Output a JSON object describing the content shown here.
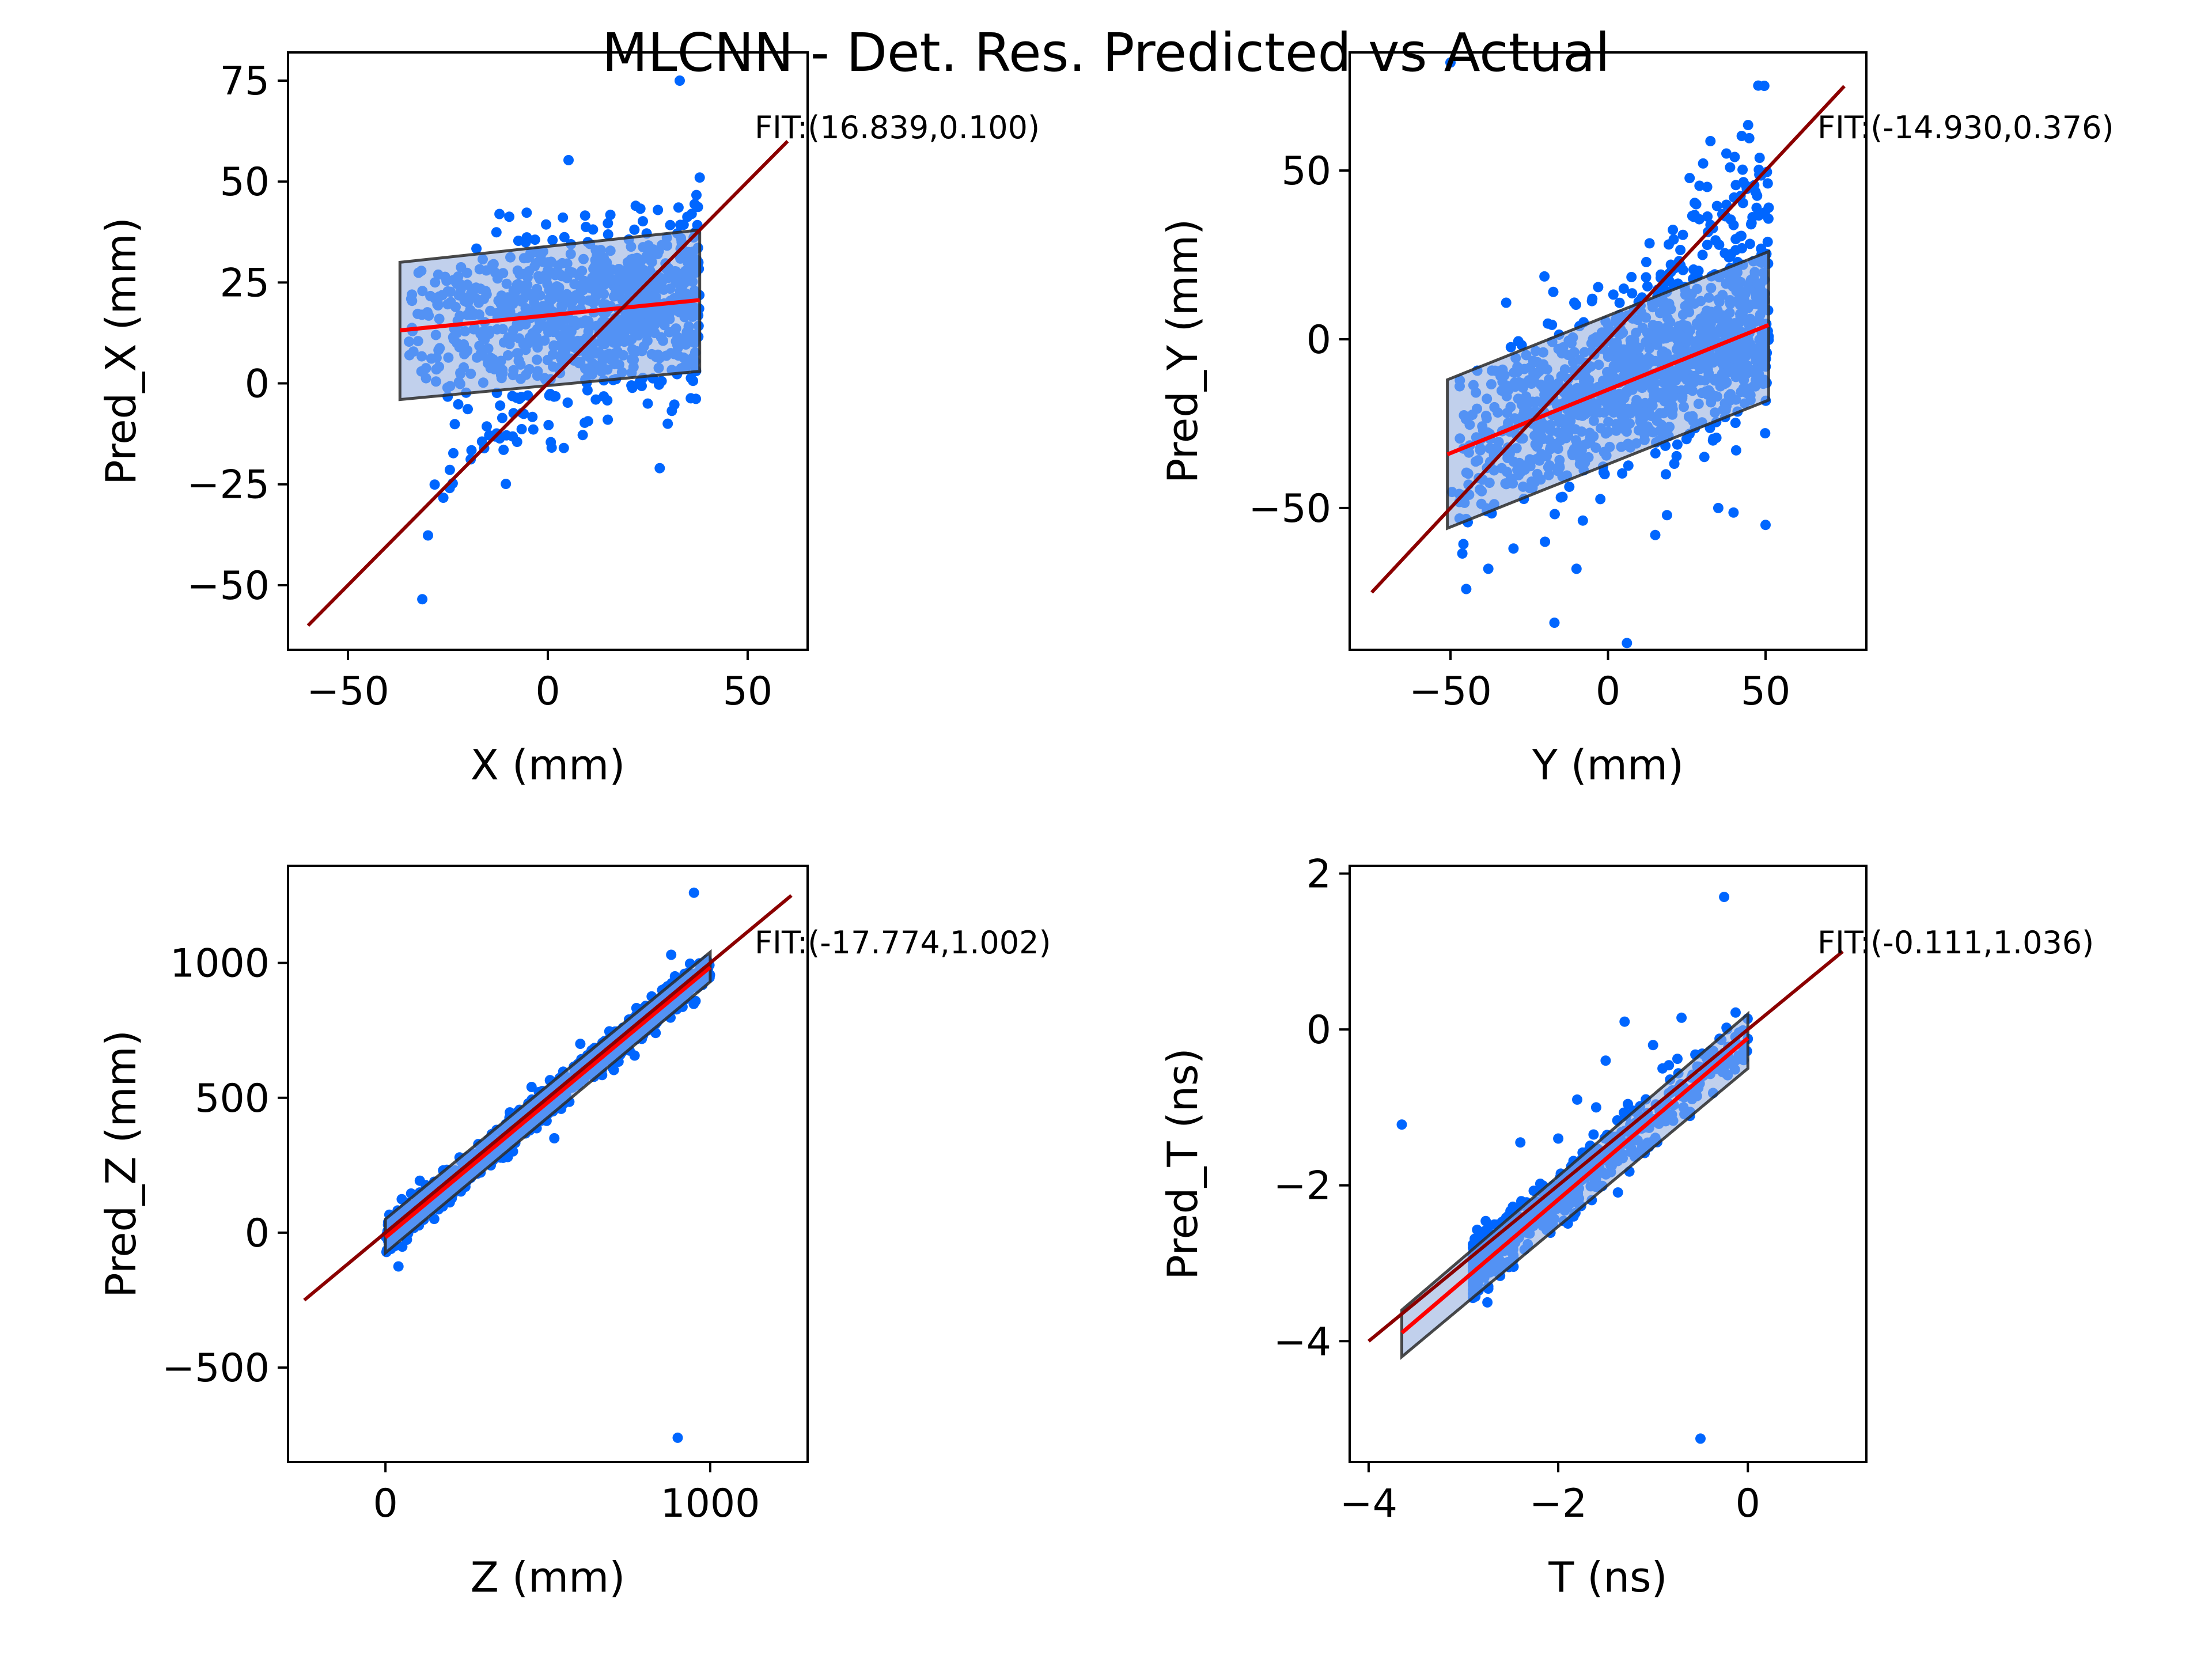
{
  "figure": {
    "title": "MLCNN - Det. Res. Predicted vs Actual"
  },
  "colors": {
    "points": "#0066ff",
    "band_fill": "#4a7fd0",
    "band_edge": "#2a2a2a",
    "fit_line": "#ff0000",
    "identity_line": "#8b0000",
    "axes": "#000000"
  },
  "chart_data": [
    {
      "type": "scatter",
      "xlabel": "X (mm)",
      "ylabel": "Pred_X (mm)",
      "xlim": [
        -65,
        65
      ],
      "ylim": [
        -66,
        82
      ],
      "xticks": [
        -50,
        0,
        50
      ],
      "yticks": [
        -50,
        -25,
        0,
        25,
        50,
        75
      ],
      "fit_text": "FIT:(16.839,0.100)",
      "fit": {
        "intercept": 16.839,
        "slope": 0.1,
        "x_range": [
          -37,
          38
        ]
      },
      "band": {
        "upper": [
          [
            -37,
            30
          ],
          [
            38,
            38
          ]
        ],
        "lower": [
          [
            -37,
            -4
          ],
          [
            38,
            3
          ]
        ]
      },
      "identity": [
        [
          -60,
          -60
        ],
        [
          60,
          60
        ]
      ],
      "points": [
        [
          33,
          75
        ],
        [
          38,
          51
        ],
        [
          28,
          -21
        ],
        [
          4,
          -16
        ],
        [
          22,
          44
        ],
        [
          36,
          42
        ],
        [
          -5,
          -3
        ],
        [
          -28,
          12
        ],
        [
          -34,
          22
        ],
        [
          10,
          35
        ],
        [
          30,
          -10
        ],
        [
          15,
          -9
        ],
        [
          25,
          -5
        ],
        [
          -15,
          5
        ],
        [
          0,
          28
        ],
        [
          20,
          30
        ],
        [
          5,
          12
        ],
        [
          -20,
          20
        ],
        [
          35,
          30
        ],
        [
          12,
          -4
        ]
      ],
      "point_cloud": {
        "n": 900,
        "x_range": [
          -37,
          38
        ],
        "sd": 8,
        "x_bias": 1.5
      }
    },
    {
      "type": "scatter",
      "xlabel": "Y (mm)",
      "ylabel": "Pred_Y (mm)",
      "xlim": [
        -82,
        82
      ],
      "ylim": [
        -92,
        85
      ],
      "xticks": [
        -50,
        0,
        50
      ],
      "yticks": [
        -50,
        0,
        50
      ],
      "fit_text": "FIT:(-14.930,0.376)",
      "fit": {
        "intercept": -14.93,
        "slope": 0.376,
        "x_range": [
          -51,
          51
        ]
      },
      "band": {
        "upper": [
          [
            -51,
            -12
          ],
          [
            51,
            26
          ]
        ],
        "lower": [
          [
            -51,
            -56
          ],
          [
            51,
            -18
          ]
        ]
      },
      "identity": [
        [
          -75,
          -75
        ],
        [
          75,
          75
        ]
      ],
      "points": [
        [
          -50,
          82
        ],
        [
          6,
          -90
        ],
        [
          -17,
          -84
        ],
        [
          -45,
          -74
        ],
        [
          -10,
          -68
        ],
        [
          15,
          -58
        ],
        [
          35,
          -50
        ],
        [
          50,
          -55
        ],
        [
          -30,
          -62
        ],
        [
          28,
          40
        ],
        [
          40,
          42
        ],
        [
          51,
          39
        ],
        [
          20,
          20
        ],
        [
          -20,
          -60
        ],
        [
          -38,
          -68
        ],
        [
          -5,
          12
        ],
        [
          5,
          15
        ],
        [
          30,
          25
        ]
      ],
      "point_cloud": {
        "n": 1200,
        "x_range": [
          -51,
          51
        ],
        "sd": 10,
        "x_bias": 1.5
      }
    },
    {
      "type": "scatter",
      "xlabel": "Z (mm)",
      "ylabel": "Pred_Z (mm)",
      "xlim": [
        -300,
        1300
      ],
      "ylim": [
        -850,
        1360
      ],
      "xticks": [
        0,
        1000
      ],
      "yticks": [
        -500,
        0,
        500,
        1000
      ],
      "fit_text": "FIT:(-17.774,1.002)",
      "fit": {
        "intercept": -17.774,
        "slope": 1.002,
        "x_range": [
          0,
          1000
        ]
      },
      "band": {
        "upper": [
          [
            0,
            50
          ],
          [
            1000,
            1040
          ]
        ],
        "lower": [
          [
            0,
            -75
          ],
          [
            1000,
            930
          ]
        ]
      },
      "identity": [
        [
          -250,
          -250
        ],
        [
          1250,
          1250
        ]
      ],
      "points": [
        [
          950,
          1260
        ],
        [
          900,
          -760
        ],
        [
          40,
          -125
        ],
        [
          520,
          350
        ],
        [
          880,
          1030
        ],
        [
          600,
          700
        ],
        [
          300,
          250
        ],
        [
          750,
          790
        ],
        [
          150,
          100
        ],
        [
          450,
          540
        ],
        [
          700,
          610
        ]
      ],
      "point_cloud": {
        "n": 900,
        "x_range": [
          0,
          1000
        ],
        "sd": 25,
        "x_bias": 1
      }
    },
    {
      "type": "scatter",
      "xlabel": "T (ns)",
      "ylabel": "Pred_T (ns)",
      "xlim": [
        -4.2,
        1.25
      ],
      "ylim": [
        -5.55,
        2.1
      ],
      "xticks": [
        -4,
        -2,
        0
      ],
      "yticks": [
        -4,
        -2,
        0,
        2
      ],
      "fit_text": "FIT:(-0.111,1.036)",
      "fit": {
        "intercept": -0.111,
        "slope": 1.036,
        "x_range": [
          -3.65,
          0
        ]
      },
      "band": {
        "upper": [
          [
            -3.65,
            -3.6
          ],
          [
            0,
            0.2
          ]
        ],
        "lower": [
          [
            -3.65,
            -4.2
          ],
          [
            0,
            -0.5
          ]
        ]
      },
      "identity": [
        [
          -4,
          -4
        ],
        [
          1,
          1
        ]
      ],
      "points": [
        [
          -0.25,
          1.7
        ],
        [
          -3.65,
          -1.22
        ],
        [
          -0.5,
          -5.25
        ],
        [
          -1.3,
          0.1
        ],
        [
          -0.7,
          0.15
        ],
        [
          -1.8,
          -0.9
        ],
        [
          -2.4,
          -1.45
        ],
        [
          -1.5,
          -0.4
        ],
        [
          -2.9,
          -2.8
        ],
        [
          -1.0,
          -0.2
        ],
        [
          -2.0,
          -1.4
        ],
        [
          -0.9,
          -0.5
        ],
        [
          -1.6,
          -1.0
        ]
      ],
      "point_cloud": {
        "n": 700,
        "x_range": [
          -2.9,
          0
        ],
        "sd": 0.12,
        "x_bias": 0.45
      }
    }
  ]
}
